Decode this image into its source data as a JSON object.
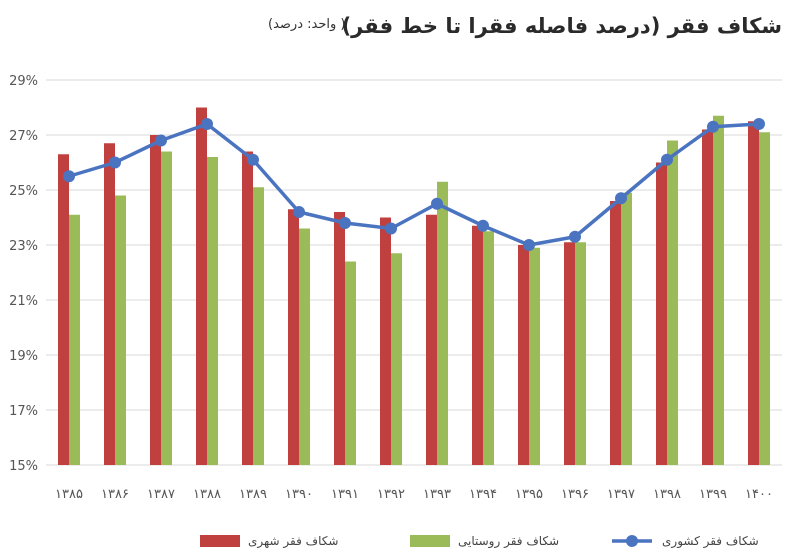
{
  "title": "شکاف فقر (درصد فاصله فقرا تا خط فقر)",
  "unit_note": "( واحد: درصد)",
  "chart_data": {
    "type": "bar",
    "categories": [
      "۱۳۸۵",
      "۱۳۸۶",
      "۱۳۸۷",
      "۱۳۸۸",
      "۱۳۸۹",
      "۱۳۹۰",
      "۱۳۹۱",
      "۱۳۹۲",
      "۱۳۹۳",
      "۱۳۹۴",
      "۱۳۹۵",
      "۱۳۹۶",
      "۱۳۹۷",
      "۱۳۹۸",
      "۱۳۹۹",
      "۱۴۰۰"
    ],
    "ylim": [
      15,
      29
    ],
    "yticks": [
      "15%",
      "17%",
      "19%",
      "21%",
      "23%",
      "25%",
      "27%",
      "29%"
    ],
    "ytick_values": [
      15,
      17,
      19,
      21,
      23,
      25,
      27,
      29
    ],
    "grid": true,
    "legend_position": "bottom",
    "series": [
      {
        "name": "شکاف فقر شهری",
        "kind": "bar",
        "color": "#c0403f",
        "values": [
          26.3,
          26.7,
          27.0,
          28.0,
          26.4,
          24.3,
          24.2,
          24.0,
          24.1,
          23.7,
          23.0,
          23.1,
          24.6,
          26.0,
          27.2,
          27.5
        ]
      },
      {
        "name": "شکاف فقر روستایی",
        "kind": "bar",
        "color": "#9bbb59",
        "values": [
          24.1,
          24.8,
          26.4,
          26.2,
          25.1,
          23.6,
          22.4,
          22.7,
          25.3,
          23.5,
          22.9,
          23.1,
          24.9,
          26.8,
          27.7,
          27.1
        ]
      },
      {
        "name": "شکاف فقر کشوری",
        "kind": "line",
        "color": "#4a73c0",
        "values": [
          25.5,
          26.0,
          26.8,
          27.4,
          26.1,
          24.2,
          23.8,
          23.6,
          24.5,
          23.7,
          23.0,
          23.3,
          24.7,
          26.1,
          27.3,
          27.4
        ]
      }
    ]
  }
}
